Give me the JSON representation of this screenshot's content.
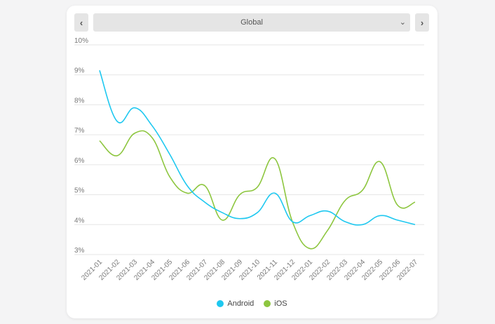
{
  "controls": {
    "prev_glyph": "‹",
    "next_glyph": "›",
    "region": "Global",
    "caret": "⌄"
  },
  "colors": {
    "android": "#1ec8f0",
    "ios": "#8dc63f",
    "grid": "#e6e6e6",
    "axis_text": "#777777"
  },
  "chart_data": {
    "type": "line",
    "title": "",
    "xlabel": "",
    "ylabel": "",
    "ylim": [
      3,
      10
    ],
    "y_ticks": [
      "3%",
      "4%",
      "5%",
      "6%",
      "7%",
      "8%",
      "9%",
      "10%"
    ],
    "grid": true,
    "legend_position": "bottom",
    "categories": [
      "2021-01",
      "2021-02",
      "2021-03",
      "2021-04",
      "2021-05",
      "2021-06",
      "2021-07",
      "2021-08",
      "2021-09",
      "2021-10",
      "2021-11",
      "2021-12",
      "2022-01",
      "2022-02",
      "2022-03",
      "2022-04",
      "2022-05",
      "2022-06",
      "2022-07"
    ],
    "series": [
      {
        "name": "Android",
        "values": [
          9.15,
          7.45,
          7.9,
          7.3,
          6.35,
          5.3,
          4.75,
          4.4,
          4.2,
          4.4,
          5.05,
          4.1,
          4.3,
          4.45,
          4.1,
          4.0,
          4.3,
          4.15,
          4.0
        ]
      },
      {
        "name": "iOS",
        "values": [
          6.8,
          6.3,
          7.05,
          6.9,
          5.6,
          5.05,
          5.3,
          4.15,
          5.0,
          5.25,
          6.2,
          4.1,
          3.2,
          3.8,
          4.8,
          5.15,
          6.1,
          4.65,
          4.75
        ]
      }
    ]
  }
}
